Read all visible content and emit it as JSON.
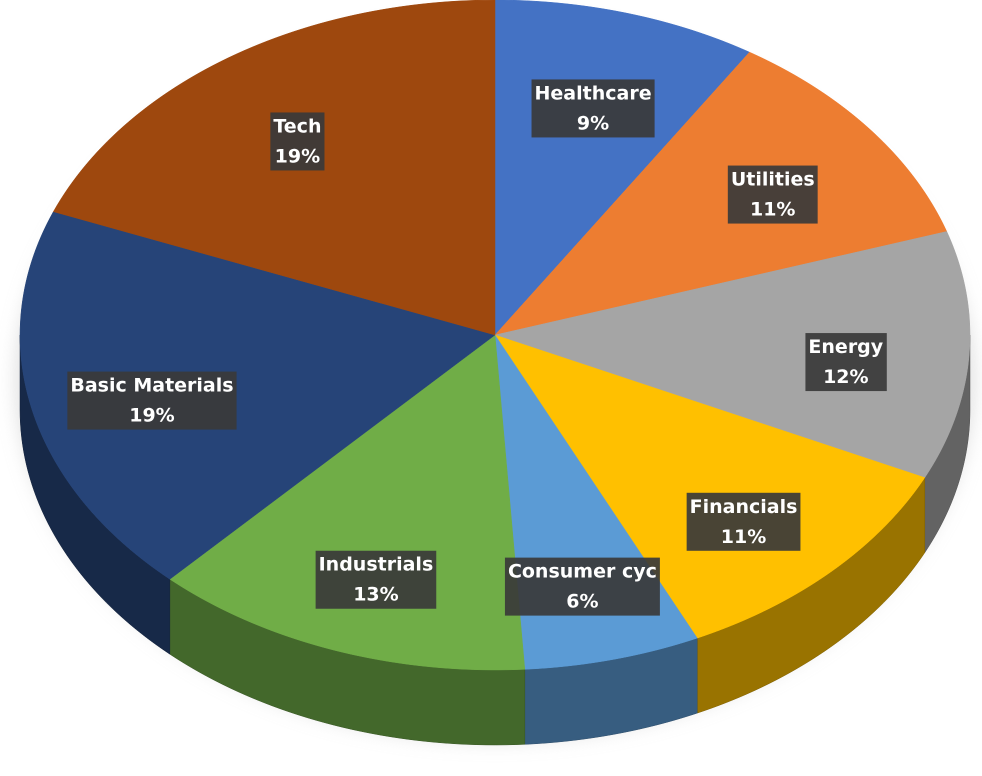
{
  "chart_data": {
    "type": "pie",
    "categories": [
      "Healthcare",
      "Utilities",
      "Energy",
      "Financials",
      "Consumer cyc",
      "Industrials",
      "Basic Materials",
      "Tech"
    ],
    "values": [
      9,
      11,
      12,
      11,
      6,
      13,
      19,
      19
    ],
    "value_labels": [
      "9%",
      "11%",
      "12%",
      "11%",
      "6%",
      "13%",
      "19%",
      "19%"
    ],
    "colors": [
      "#4472c4",
      "#ed7d31",
      "#a5a5a5",
      "#ffc000",
      "#5b9bd5",
      "#70ad47",
      "#264478",
      "#9e480e"
    ]
  }
}
